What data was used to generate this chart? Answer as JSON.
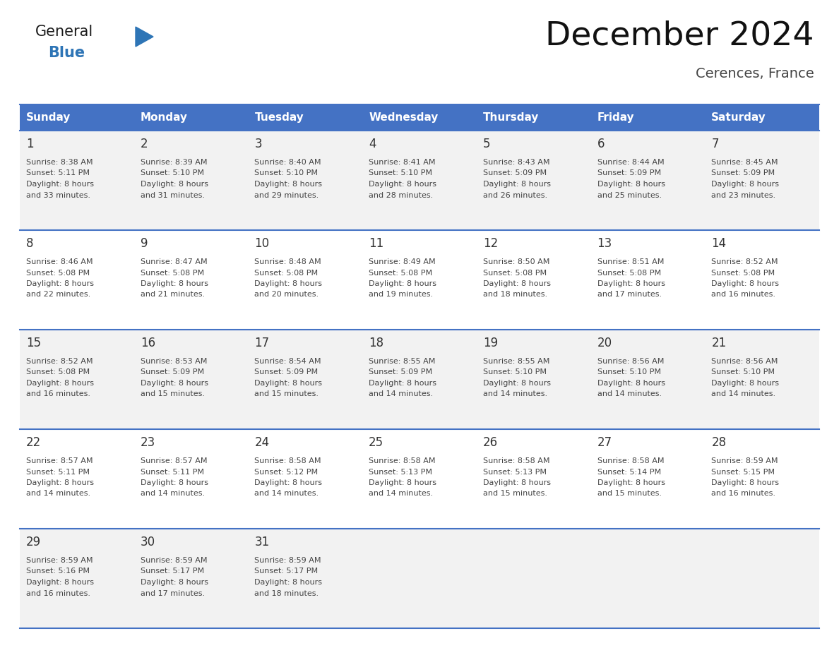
{
  "title": "December 2024",
  "subtitle": "Cerences, France",
  "header_color": "#4472C4",
  "header_text_color": "#FFFFFF",
  "day_names": [
    "Sunday",
    "Monday",
    "Tuesday",
    "Wednesday",
    "Thursday",
    "Friday",
    "Saturday"
  ],
  "row_bg_even": "#F2F2F2",
  "row_bg_odd": "#FFFFFF",
  "border_color": "#4472C4",
  "date_color": "#333333",
  "text_color": "#444444",
  "weeks": [
    [
      {
        "day": 1,
        "sunrise": "8:38 AM",
        "sunset": "5:11 PM",
        "daylight": "8 hours and 33 minutes."
      },
      {
        "day": 2,
        "sunrise": "8:39 AM",
        "sunset": "5:10 PM",
        "daylight": "8 hours and 31 minutes."
      },
      {
        "day": 3,
        "sunrise": "8:40 AM",
        "sunset": "5:10 PM",
        "daylight": "8 hours and 29 minutes."
      },
      {
        "day": 4,
        "sunrise": "8:41 AM",
        "sunset": "5:10 PM",
        "daylight": "8 hours and 28 minutes."
      },
      {
        "day": 5,
        "sunrise": "8:43 AM",
        "sunset": "5:09 PM",
        "daylight": "8 hours and 26 minutes."
      },
      {
        "day": 6,
        "sunrise": "8:44 AM",
        "sunset": "5:09 PM",
        "daylight": "8 hours and 25 minutes."
      },
      {
        "day": 7,
        "sunrise": "8:45 AM",
        "sunset": "5:09 PM",
        "daylight": "8 hours and 23 minutes."
      }
    ],
    [
      {
        "day": 8,
        "sunrise": "8:46 AM",
        "sunset": "5:08 PM",
        "daylight": "8 hours and 22 minutes."
      },
      {
        "day": 9,
        "sunrise": "8:47 AM",
        "sunset": "5:08 PM",
        "daylight": "8 hours and 21 minutes."
      },
      {
        "day": 10,
        "sunrise": "8:48 AM",
        "sunset": "5:08 PM",
        "daylight": "8 hours and 20 minutes."
      },
      {
        "day": 11,
        "sunrise": "8:49 AM",
        "sunset": "5:08 PM",
        "daylight": "8 hours and 19 minutes."
      },
      {
        "day": 12,
        "sunrise": "8:50 AM",
        "sunset": "5:08 PM",
        "daylight": "8 hours and 18 minutes."
      },
      {
        "day": 13,
        "sunrise": "8:51 AM",
        "sunset": "5:08 PM",
        "daylight": "8 hours and 17 minutes."
      },
      {
        "day": 14,
        "sunrise": "8:52 AM",
        "sunset": "5:08 PM",
        "daylight": "8 hours and 16 minutes."
      }
    ],
    [
      {
        "day": 15,
        "sunrise": "8:52 AM",
        "sunset": "5:08 PM",
        "daylight": "8 hours and 16 minutes."
      },
      {
        "day": 16,
        "sunrise": "8:53 AM",
        "sunset": "5:09 PM",
        "daylight": "8 hours and 15 minutes."
      },
      {
        "day": 17,
        "sunrise": "8:54 AM",
        "sunset": "5:09 PM",
        "daylight": "8 hours and 15 minutes."
      },
      {
        "day": 18,
        "sunrise": "8:55 AM",
        "sunset": "5:09 PM",
        "daylight": "8 hours and 14 minutes."
      },
      {
        "day": 19,
        "sunrise": "8:55 AM",
        "sunset": "5:10 PM",
        "daylight": "8 hours and 14 minutes."
      },
      {
        "day": 20,
        "sunrise": "8:56 AM",
        "sunset": "5:10 PM",
        "daylight": "8 hours and 14 minutes."
      },
      {
        "day": 21,
        "sunrise": "8:56 AM",
        "sunset": "5:10 PM",
        "daylight": "8 hours and 14 minutes."
      }
    ],
    [
      {
        "day": 22,
        "sunrise": "8:57 AM",
        "sunset": "5:11 PM",
        "daylight": "8 hours and 14 minutes."
      },
      {
        "day": 23,
        "sunrise": "8:57 AM",
        "sunset": "5:11 PM",
        "daylight": "8 hours and 14 minutes."
      },
      {
        "day": 24,
        "sunrise": "8:58 AM",
        "sunset": "5:12 PM",
        "daylight": "8 hours and 14 minutes."
      },
      {
        "day": 25,
        "sunrise": "8:58 AM",
        "sunset": "5:13 PM",
        "daylight": "8 hours and 14 minutes."
      },
      {
        "day": 26,
        "sunrise": "8:58 AM",
        "sunset": "5:13 PM",
        "daylight": "8 hours and 15 minutes."
      },
      {
        "day": 27,
        "sunrise": "8:58 AM",
        "sunset": "5:14 PM",
        "daylight": "8 hours and 15 minutes."
      },
      {
        "day": 28,
        "sunrise": "8:59 AM",
        "sunset": "5:15 PM",
        "daylight": "8 hours and 16 minutes."
      }
    ],
    [
      {
        "day": 29,
        "sunrise": "8:59 AM",
        "sunset": "5:16 PM",
        "daylight": "8 hours and 16 minutes."
      },
      {
        "day": 30,
        "sunrise": "8:59 AM",
        "sunset": "5:17 PM",
        "daylight": "8 hours and 17 minutes."
      },
      {
        "day": 31,
        "sunrise": "8:59 AM",
        "sunset": "5:17 PM",
        "daylight": "8 hours and 18 minutes."
      },
      null,
      null,
      null,
      null
    ]
  ],
  "logo_text_general": "General",
  "logo_text_blue": "Blue",
  "logo_color_general": "#1a1a1a",
  "logo_color_blue": "#2E75B6",
  "logo_triangle_color": "#2E75B6",
  "fig_width": 11.88,
  "fig_height": 9.18,
  "dpi": 100
}
